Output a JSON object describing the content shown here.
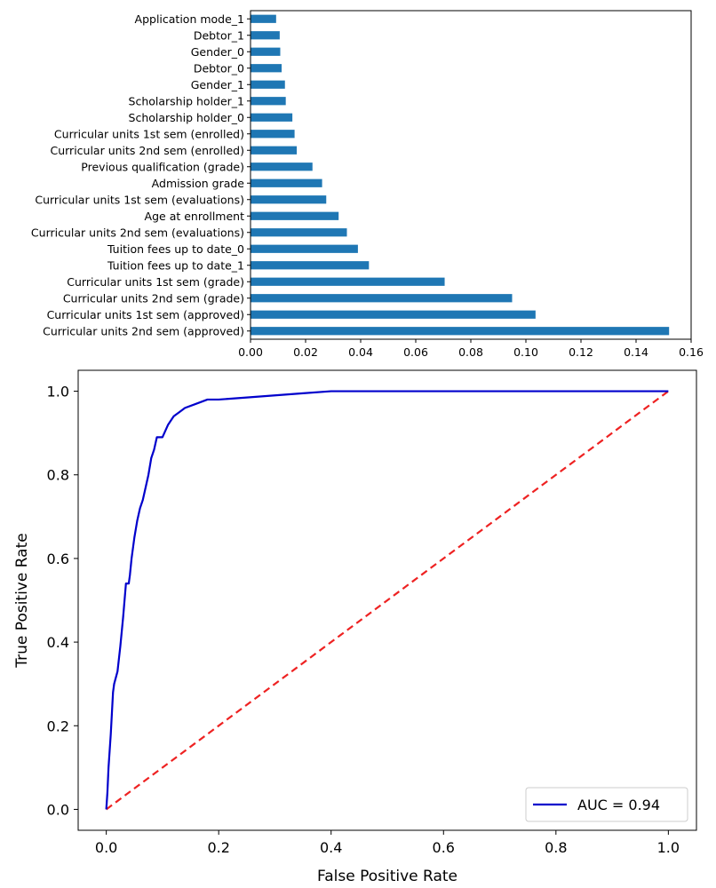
{
  "chart_data": [
    {
      "type": "bar",
      "orientation": "horizontal",
      "categories": [
        "Curricular units 2nd sem (approved)",
        "Curricular units 1st sem (approved)",
        "Curricular units 2nd sem (grade)",
        "Curricular units 1st sem (grade)",
        "Tuition fees up to date_1",
        "Tuition fees up to date_0",
        "Curricular units 2nd sem (evaluations)",
        "Age at enrollment",
        "Curricular units 1st sem (evaluations)",
        "Admission grade",
        "Previous qualification (grade)",
        "Curricular units 2nd sem (enrolled)",
        "Curricular units 1st sem (enrolled)",
        "Scholarship holder_0",
        "Scholarship holder_1",
        "Gender_1",
        "Debtor_0",
        "Gender_0",
        "Debtor_1",
        "Application mode_1"
      ],
      "values": [
        0.152,
        0.1035,
        0.095,
        0.0705,
        0.043,
        0.039,
        0.035,
        0.032,
        0.0275,
        0.026,
        0.0225,
        0.0168,
        0.016,
        0.0152,
        0.0128,
        0.0125,
        0.0113,
        0.0108,
        0.0106,
        0.0093
      ],
      "xlim": [
        0.0,
        0.16
      ],
      "xticks": [
        "0.00",
        "0.02",
        "0.04",
        "0.06",
        "0.08",
        "0.10",
        "0.12",
        "0.14",
        "0.16"
      ],
      "bar_color": "#1f77b4"
    },
    {
      "type": "line",
      "xlabel": "False Positive Rate",
      "ylabel": "True Positive Rate",
      "xlim": [
        -0.05,
        1.05
      ],
      "ylim": [
        -0.05,
        1.05
      ],
      "xticks": [
        "0.0",
        "0.2",
        "0.4",
        "0.6",
        "0.8",
        "1.0"
      ],
      "yticks": [
        "0.0",
        "0.2",
        "0.4",
        "0.6",
        "0.8",
        "1.0"
      ],
      "legend_position": "lower-right",
      "series": [
        {
          "name": "AUC = 0.94",
          "color": "#0000cc",
          "style": "solid",
          "x": [
            0,
            0.002,
            0.004,
            0.006,
            0.008,
            0.01,
            0.012,
            0.014,
            0.016,
            0.02,
            0.025,
            0.03,
            0.035,
            0.04,
            0.042,
            0.045,
            0.05,
            0.055,
            0.06,
            0.065,
            0.07,
            0.075,
            0.08,
            0.085,
            0.09,
            0.1,
            0.11,
            0.12,
            0.13,
            0.14,
            0.16,
            0.18,
            0.2,
            0.25,
            0.3,
            0.35,
            0.4,
            0.45,
            0.5,
            0.6,
            0.7,
            0.8,
            0.9,
            1.0
          ],
          "y": [
            0,
            0.04,
            0.1,
            0.14,
            0.18,
            0.23,
            0.28,
            0.3,
            0.31,
            0.33,
            0.39,
            0.46,
            0.54,
            0.54,
            0.56,
            0.6,
            0.65,
            0.69,
            0.72,
            0.74,
            0.77,
            0.8,
            0.84,
            0.86,
            0.89,
            0.89,
            0.92,
            0.94,
            0.95,
            0.96,
            0.97,
            0.98,
            0.98,
            0.985,
            0.99,
            0.995,
            1.0,
            1.0,
            1.0,
            1.0,
            1.0,
            1.0,
            1.0,
            1.0
          ]
        },
        {
          "name": "",
          "color": "#ee2222",
          "style": "dashed",
          "x": [
            0,
            1
          ],
          "y": [
            0,
            1
          ]
        }
      ]
    }
  ]
}
